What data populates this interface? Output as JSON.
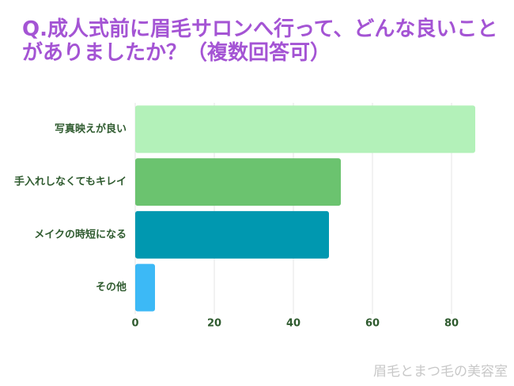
{
  "chart_data": {
    "type": "barh",
    "title": "Q.成人式前に眉毛サロンへ行って、どんな良いことがありましたか？（複数回答可）",
    "categories": [
      "写真映えが良い",
      "手入れしなくてもキレイ",
      "メイクの時短になる",
      "その他"
    ],
    "values": [
      86,
      52,
      49,
      5
    ],
    "colors": [
      "#b3f1b9",
      "#6bc36f",
      "#0098b0",
      "#3cb9f6"
    ],
    "xlim": [
      0,
      90
    ],
    "xticks": [
      0,
      20,
      40,
      60,
      80
    ],
    "grid": true
  },
  "watermark": "眉毛とまつ毛の美容室"
}
